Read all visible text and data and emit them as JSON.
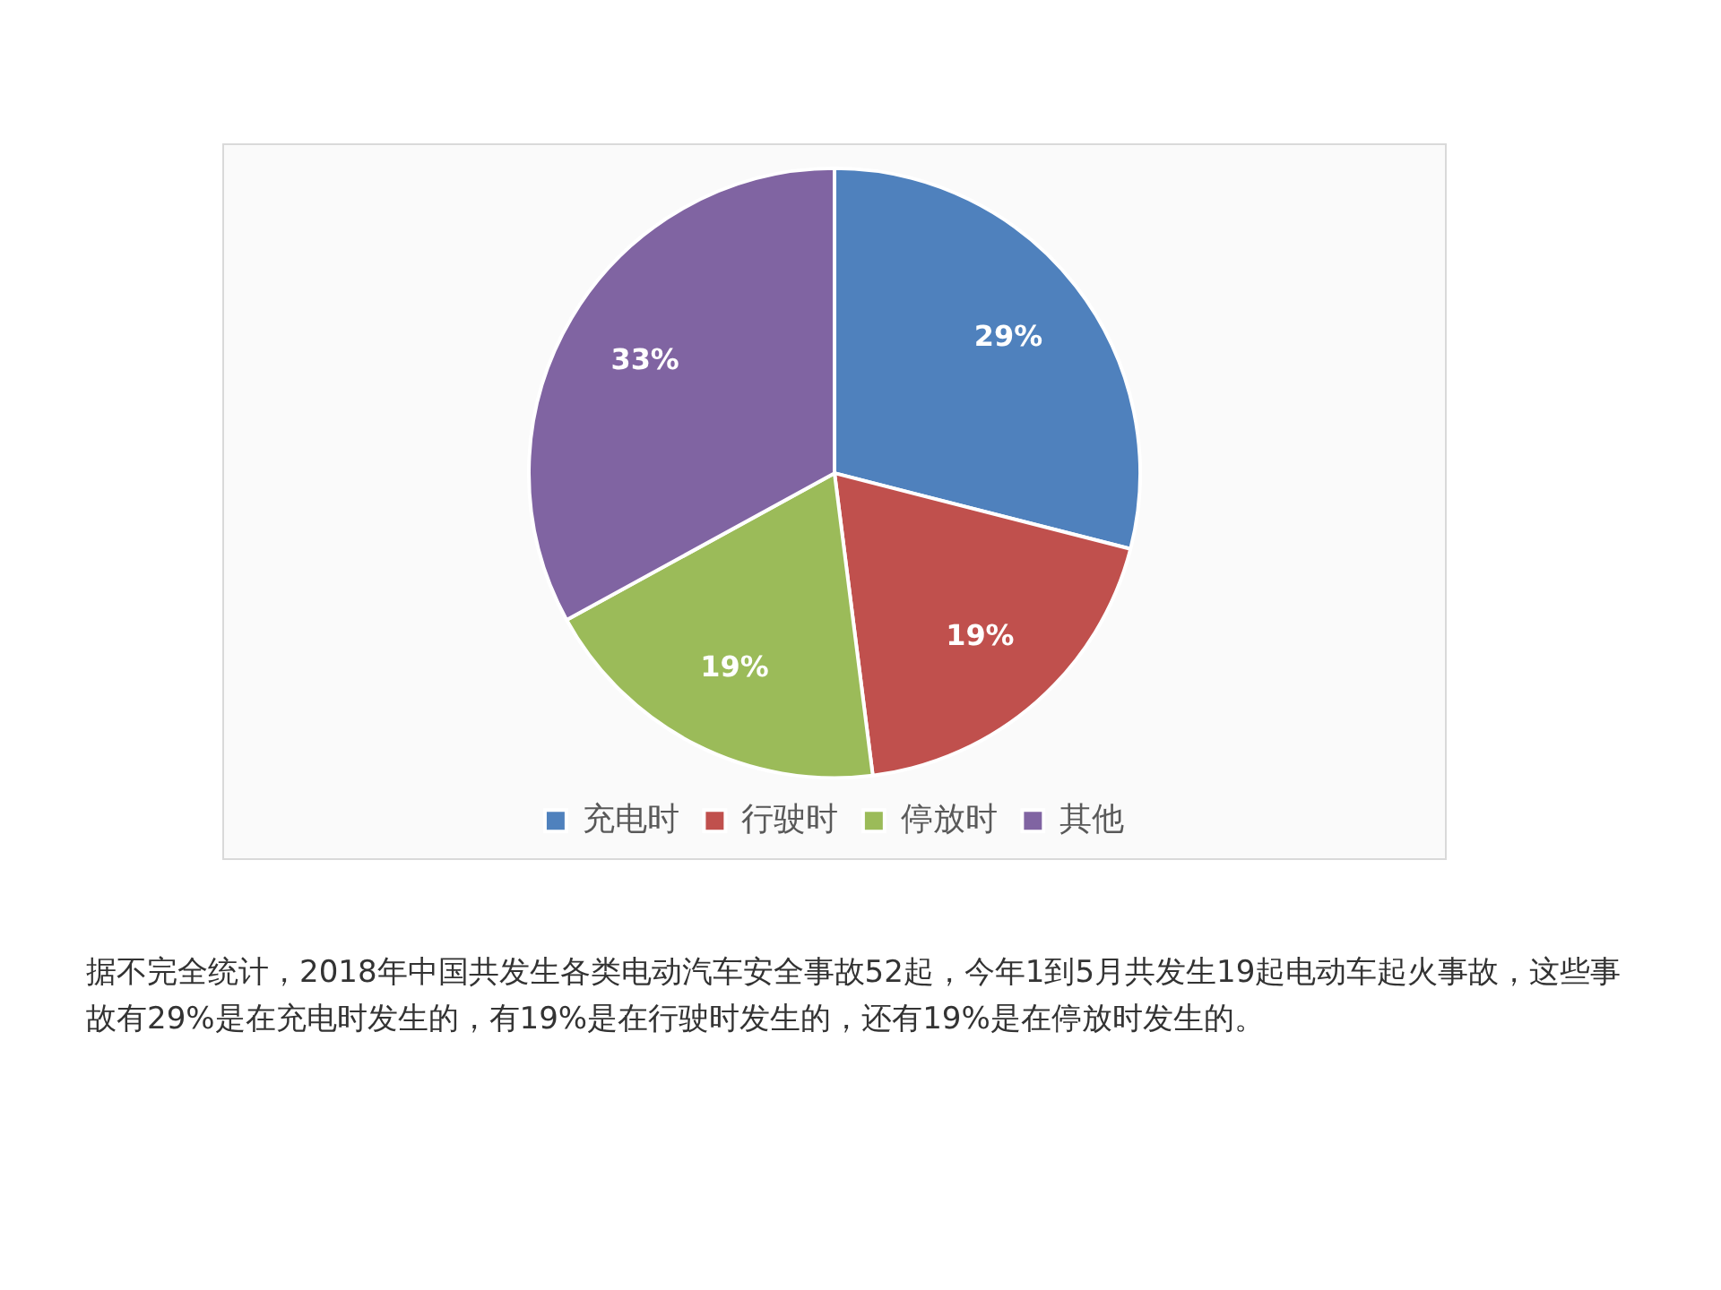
{
  "chart_data": {
    "type": "pie",
    "categories": [
      "充电时",
      "行驶时",
      "停放时",
      "其他"
    ],
    "values": [
      29,
      19,
      19,
      33
    ],
    "value_labels": [
      "29%",
      "19%",
      "19%",
      "33%"
    ],
    "colors": [
      "#4f81bd",
      "#c0504d",
      "#9bbb59",
      "#8064a2"
    ],
    "legend": "bottom",
    "annotations": [
      "据不完全统计，2018年中国共发生各类电动汽车安全事故52起，今年1到5月共发生19起电动车起火事故，这些事故有29%是在充电时发生的，有19%是在行驶时发生的，还有19%是在停放时发生的。"
    ]
  }
}
